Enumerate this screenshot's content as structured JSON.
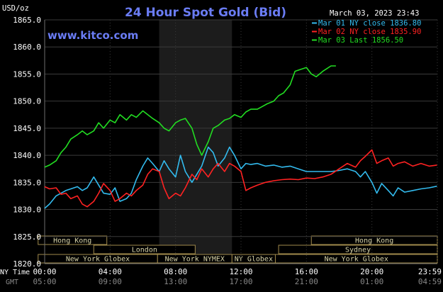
{
  "chart_data": {
    "type": "line",
    "title": "24 Hour Spot Gold (Bid)",
    "website": "www.kitco.com",
    "date_label": "March 03, 2023 23:43",
    "unit_label": "USD/oz",
    "ylim": [
      1820,
      1865
    ],
    "y_ticks": [
      "1865.0",
      "1860.0",
      "1855.0",
      "1850.0",
      "1845.0",
      "1840.0",
      "1835.0",
      "1830.0",
      "1825.0",
      "1820.0"
    ],
    "x_ticks_ny": [
      "00:00",
      "04:00",
      "08:00",
      "12:00",
      "16:00",
      "20:00",
      "23:59"
    ],
    "x_ticks_gmt": [
      "05:00",
      "09:00",
      "13:00",
      "17:00",
      "21:00",
      "01:00",
      "04:59"
    ],
    "row_label_ny": "NY Time",
    "row_label_gmt": "GMT",
    "shaded_region_hours": [
      7.0,
      11.45
    ],
    "legend": [
      {
        "label": "Mar 01 NY close 1836.80",
        "color": "#33bbee"
      },
      {
        "label": "Mar 02 NY close 1835.90",
        "color": "#ff2222"
      },
      {
        "label": "Mar 03 Last 1856.50",
        "color": "#22dd22"
      }
    ],
    "sessions": [
      {
        "name": "Hong Kong",
        "start": -0.4,
        "end": 3.8,
        "row": 0
      },
      {
        "name": "Hong Kong",
        "start": 16.3,
        "end": 24.0,
        "row": 0
      },
      {
        "name": "London",
        "start": 3.0,
        "end": 9.2,
        "row": 1
      },
      {
        "name": "Sydney",
        "start": 14.3,
        "end": 24.0,
        "row": 1
      },
      {
        "name": "New York Globex",
        "start": -0.4,
        "end": 6.9,
        "row": 2
      },
      {
        "name": "New York NYMEX",
        "start": 6.9,
        "end": 11.45,
        "row": 2
      },
      {
        "name": "NY Globex",
        "start": 11.45,
        "end": 14.1,
        "row": 2
      },
      {
        "name": "New York Globex",
        "start": 14.1,
        "end": 24.0,
        "row": 2
      }
    ],
    "series": [
      {
        "name": "Mar 01 NY close 1836.80",
        "color": "#33bbee",
        "x": [
          0,
          0.3,
          0.7,
          1.0,
          1.3,
          1.6,
          2.0,
          2.3,
          2.6,
          3.0,
          3.3,
          3.6,
          4.0,
          4.3,
          4.6,
          5.0,
          5.3,
          5.6,
          6.0,
          6.3,
          6.6,
          7.0,
          7.3,
          7.6,
          8.0,
          8.3,
          8.6,
          9.0,
          9.3,
          9.6,
          10.0,
          10.3,
          10.6,
          11.0,
          11.3,
          11.6,
          12.0,
          12.3,
          12.6,
          13.0,
          13.5,
          14.0,
          14.5,
          15.0,
          15.5,
          16.0,
          16.5,
          17.0,
          17.5,
          18.0,
          18.5,
          19.0,
          19.3,
          19.6,
          20.0,
          20.3,
          20.6,
          21.0,
          21.3,
          21.6,
          22.0,
          22.5,
          23.0,
          23.5,
          23.98
        ],
        "y": [
          1830.2,
          1831.0,
          1832.5,
          1833.0,
          1833.5,
          1833.8,
          1834.2,
          1833.5,
          1834.0,
          1836.0,
          1834.5,
          1833.0,
          1832.8,
          1834.0,
          1831.5,
          1832.0,
          1833.0,
          1835.5,
          1838.0,
          1839.5,
          1838.5,
          1837.0,
          1839.0,
          1837.5,
          1836.0,
          1840.0,
          1837.0,
          1835.0,
          1836.5,
          1838.0,
          1841.5,
          1840.5,
          1838.0,
          1839.5,
          1841.5,
          1840.0,
          1837.5,
          1838.5,
          1838.3,
          1838.5,
          1838.0,
          1838.2,
          1837.8,
          1838.0,
          1837.5,
          1837.0,
          1837.0,
          1837.0,
          1837.0,
          1837.2,
          1837.5,
          1837.0,
          1836.0,
          1837.0,
          1835.0,
          1833.0,
          1834.8,
          1833.5,
          1832.5,
          1834.0,
          1833.2,
          1833.5,
          1833.8,
          1834.0,
          1834.3
        ]
      },
      {
        "name": "Mar 02 NY close 1835.90",
        "color": "#ff2222",
        "x": [
          0,
          0.3,
          0.7,
          1.0,
          1.3,
          1.6,
          2.0,
          2.3,
          2.6,
          3.0,
          3.3,
          3.6,
          4.0,
          4.3,
          4.6,
          5.0,
          5.3,
          5.6,
          6.0,
          6.3,
          6.6,
          7.0,
          7.3,
          7.6,
          8.0,
          8.3,
          8.6,
          9.0,
          9.3,
          9.6,
          10.0,
          10.3,
          10.6,
          11.0,
          11.3,
          11.6,
          12.0,
          12.3,
          12.6,
          13.0,
          13.5,
          14.0,
          14.5,
          15.0,
          15.5,
          16.0,
          16.5,
          17.0,
          17.5,
          18.0,
          18.5,
          19.0,
          19.3,
          19.6,
          20.0,
          20.3,
          20.6,
          21.0,
          21.3,
          21.6,
          22.0,
          22.5,
          23.0,
          23.5,
          23.98
        ],
        "y": [
          1834.2,
          1833.8,
          1834.0,
          1832.8,
          1833.0,
          1832.0,
          1832.5,
          1831.0,
          1830.5,
          1831.5,
          1833.0,
          1834.8,
          1833.5,
          1831.5,
          1832.0,
          1833.0,
          1832.5,
          1833.5,
          1834.5,
          1836.5,
          1837.5,
          1837.0,
          1834.0,
          1832.0,
          1833.0,
          1832.5,
          1834.0,
          1836.5,
          1835.5,
          1837.5,
          1836.0,
          1837.5,
          1838.5,
          1837.0,
          1838.5,
          1838.0,
          1837.0,
          1833.5,
          1834.0,
          1834.5,
          1835.0,
          1835.3,
          1835.5,
          1835.6,
          1835.5,
          1835.8,
          1835.7,
          1836.0,
          1836.5,
          1837.5,
          1838.5,
          1837.8,
          1839.0,
          1839.8,
          1841.0,
          1838.5,
          1839.0,
          1839.5,
          1838.0,
          1838.5,
          1838.8,
          1838.0,
          1838.5,
          1838.0,
          1838.2
        ]
      },
      {
        "name": "Mar 03 Last 1856.50",
        "color": "#22dd22",
        "x": [
          0,
          0.3,
          0.7,
          1.0,
          1.3,
          1.6,
          2.0,
          2.3,
          2.6,
          3.0,
          3.3,
          3.6,
          4.0,
          4.3,
          4.6,
          5.0,
          5.3,
          5.6,
          6.0,
          6.3,
          6.6,
          7.0,
          7.3,
          7.6,
          8.0,
          8.3,
          8.6,
          9.0,
          9.3,
          9.6,
          10.0,
          10.3,
          10.6,
          11.0,
          11.3,
          11.6,
          12.0,
          12.3,
          12.6,
          13.0,
          13.3,
          13.6,
          14.0,
          14.3,
          14.6,
          15.0,
          15.3,
          15.6,
          16.0,
          16.3,
          16.6,
          17.0,
          17.5,
          17.8
        ],
        "y": [
          1837.8,
          1838.2,
          1839.0,
          1840.5,
          1841.5,
          1843.0,
          1843.8,
          1844.5,
          1843.8,
          1844.5,
          1846.0,
          1845.0,
          1846.5,
          1846.0,
          1847.5,
          1846.5,
          1847.5,
          1847.0,
          1848.2,
          1847.5,
          1846.8,
          1846.0,
          1845.0,
          1844.5,
          1846.0,
          1846.5,
          1846.8,
          1845.0,
          1842.0,
          1840.0,
          1842.5,
          1845.0,
          1845.5,
          1846.5,
          1846.8,
          1847.5,
          1847.0,
          1848.0,
          1848.5,
          1848.5,
          1849.0,
          1849.5,
          1850.0,
          1851.0,
          1851.5,
          1853.0,
          1855.5,
          1855.8,
          1856.2,
          1855.0,
          1854.5,
          1855.5,
          1856.5,
          1856.5
        ]
      }
    ]
  }
}
